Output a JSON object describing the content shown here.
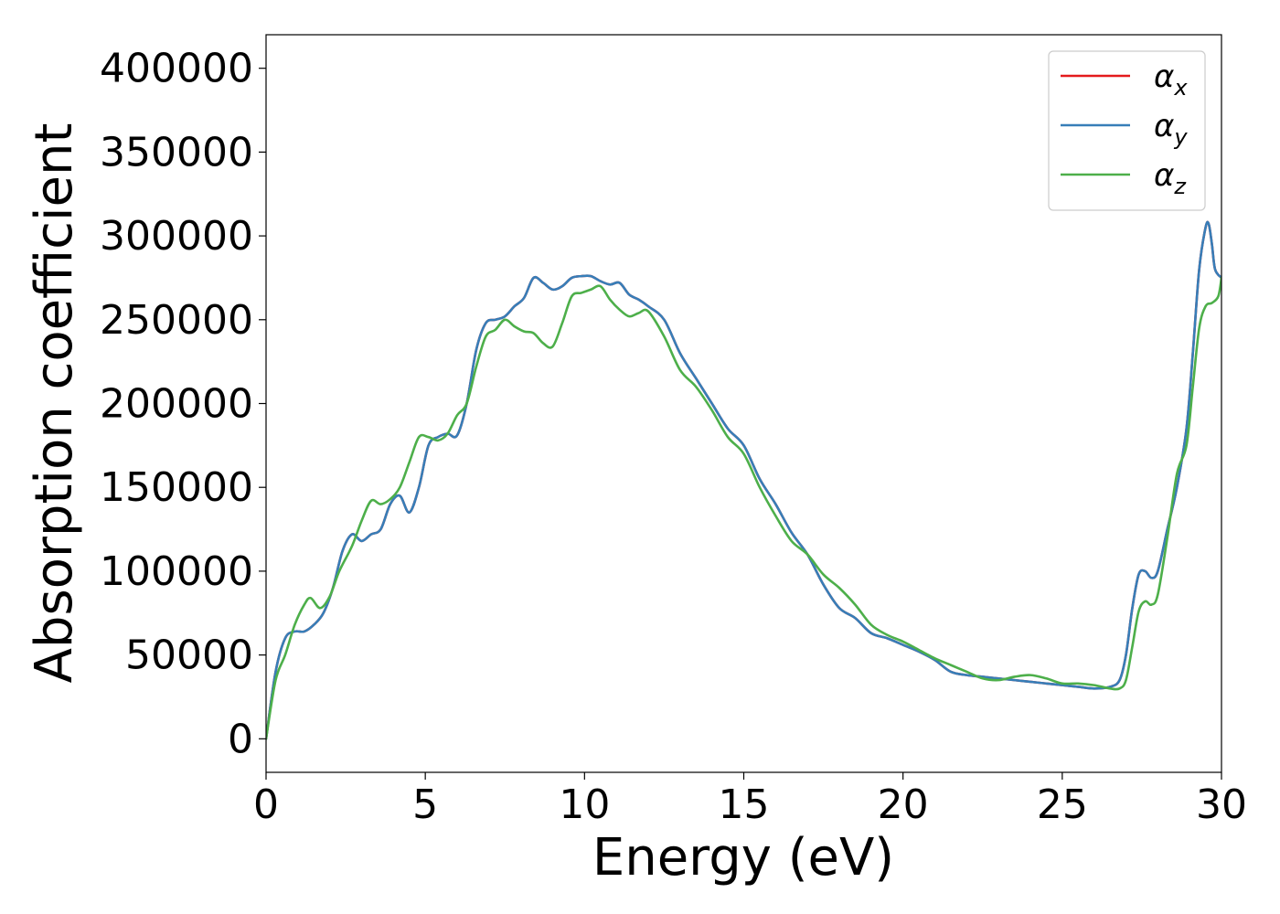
{
  "chart_data": {
    "type": "line",
    "title": "",
    "xlabel": "Energy (eV)",
    "ylabel": "Absorption coefficient",
    "xlim": [
      0,
      30
    ],
    "ylim": [
      -20000,
      420000
    ],
    "xticks": [
      0,
      5,
      10,
      15,
      20,
      25,
      30
    ],
    "yticks": [
      0,
      50000,
      100000,
      150000,
      200000,
      250000,
      300000,
      350000,
      400000
    ],
    "grid": false,
    "legend_position": "top-right",
    "series": [
      {
        "name": "α_x",
        "base": "α",
        "sub": "x",
        "color": "#e41a1c",
        "x": [
          0,
          0.3,
          0.6,
          0.9,
          1.2,
          1.5,
          1.8,
          2.1,
          2.4,
          2.7,
          3.0,
          3.3,
          3.6,
          3.9,
          4.2,
          4.5,
          4.8,
          5.1,
          5.4,
          5.7,
          6.0,
          6.3,
          6.6,
          6.9,
          7.2,
          7.5,
          7.8,
          8.1,
          8.4,
          8.7,
          9.0,
          9.3,
          9.6,
          9.9,
          10.2,
          10.5,
          10.8,
          11.1,
          11.4,
          11.7,
          12.0,
          12.5,
          13.0,
          13.5,
          14.0,
          14.5,
          15.0,
          15.5,
          16.0,
          16.5,
          17.0,
          17.5,
          18.0,
          18.5,
          19.0,
          19.5,
          20.0,
          20.5,
          21.0,
          21.5,
          22.0,
          22.5,
          23.0,
          23.5,
          24.0,
          24.5,
          25.0,
          25.5,
          26.0,
          26.5,
          26.8,
          27.0,
          27.2,
          27.4,
          27.6,
          27.8,
          28.0,
          28.3,
          28.6,
          28.9,
          29.1,
          29.3,
          29.5,
          29.6,
          29.7,
          29.8,
          30.0
        ],
        "values": [
          0,
          40000,
          60000,
          64000,
          64000,
          68000,
          75000,
          90000,
          112000,
          122000,
          118000,
          122000,
          125000,
          140000,
          145000,
          135000,
          150000,
          175000,
          180000,
          182000,
          181000,
          200000,
          232000,
          248000,
          250000,
          252000,
          258000,
          263000,
          275000,
          272000,
          268000,
          270000,
          275000,
          276000,
          276000,
          273000,
          271000,
          272000,
          265000,
          262000,
          258000,
          250000,
          230000,
          215000,
          200000,
          185000,
          175000,
          155000,
          140000,
          123000,
          110000,
          92000,
          78000,
          72000,
          63000,
          60000,
          56000,
          52000,
          47000,
          40000,
          38000,
          37000,
          36000,
          35000,
          34000,
          33000,
          32000,
          31000,
          30000,
          31000,
          35000,
          50000,
          78000,
          98000,
          100000,
          96000,
          100000,
          125000,
          150000,
          185000,
          230000,
          280000,
          305000,
          307000,
          295000,
          280000,
          275000
        ]
      },
      {
        "name": "α_y",
        "base": "α",
        "sub": "y",
        "color": "#377eb8",
        "x": [
          0,
          0.3,
          0.6,
          0.9,
          1.2,
          1.5,
          1.8,
          2.1,
          2.4,
          2.7,
          3.0,
          3.3,
          3.6,
          3.9,
          4.2,
          4.5,
          4.8,
          5.1,
          5.4,
          5.7,
          6.0,
          6.3,
          6.6,
          6.9,
          7.2,
          7.5,
          7.8,
          8.1,
          8.4,
          8.7,
          9.0,
          9.3,
          9.6,
          9.9,
          10.2,
          10.5,
          10.8,
          11.1,
          11.4,
          11.7,
          12.0,
          12.5,
          13.0,
          13.5,
          14.0,
          14.5,
          15.0,
          15.5,
          16.0,
          16.5,
          17.0,
          17.5,
          18.0,
          18.5,
          19.0,
          19.5,
          20.0,
          20.5,
          21.0,
          21.5,
          22.0,
          22.5,
          23.0,
          23.5,
          24.0,
          24.5,
          25.0,
          25.5,
          26.0,
          26.5,
          26.8,
          27.0,
          27.2,
          27.4,
          27.6,
          27.8,
          28.0,
          28.3,
          28.6,
          28.9,
          29.1,
          29.3,
          29.5,
          29.6,
          29.7,
          29.8,
          30.0
        ],
        "values": [
          0,
          40000,
          60000,
          64000,
          64000,
          68000,
          75000,
          90000,
          112000,
          122000,
          118000,
          122000,
          125000,
          140000,
          145000,
          135000,
          150000,
          175000,
          180000,
          182000,
          181000,
          200000,
          232000,
          248000,
          250000,
          252000,
          258000,
          263000,
          275000,
          272000,
          268000,
          270000,
          275000,
          276000,
          276000,
          273000,
          271000,
          272000,
          265000,
          262000,
          258000,
          250000,
          230000,
          215000,
          200000,
          185000,
          175000,
          155000,
          140000,
          123000,
          110000,
          92000,
          78000,
          72000,
          63000,
          60000,
          56000,
          52000,
          47000,
          40000,
          38000,
          37000,
          36000,
          35000,
          34000,
          33000,
          32000,
          31000,
          30000,
          31000,
          35000,
          50000,
          78000,
          98000,
          100000,
          96000,
          100000,
          125000,
          150000,
          185000,
          230000,
          280000,
          305000,
          307000,
          295000,
          280000,
          275000
        ]
      },
      {
        "name": "α_z",
        "base": "α",
        "sub": "z",
        "color": "#4daf4a",
        "x": [
          0,
          0.3,
          0.6,
          0.9,
          1.2,
          1.4,
          1.7,
          2.0,
          2.3,
          2.7,
          3.0,
          3.3,
          3.6,
          3.9,
          4.2,
          4.5,
          4.8,
          5.1,
          5.4,
          5.7,
          6.0,
          6.3,
          6.6,
          6.9,
          7.2,
          7.5,
          7.8,
          8.1,
          8.4,
          8.7,
          9.0,
          9.3,
          9.6,
          9.9,
          10.2,
          10.5,
          10.8,
          11.1,
          11.4,
          11.7,
          12.0,
          12.5,
          13.0,
          13.5,
          14.0,
          14.5,
          15.0,
          15.5,
          16.0,
          16.5,
          17.0,
          17.5,
          18.0,
          18.5,
          19.0,
          19.5,
          20.0,
          20.5,
          21.0,
          21.5,
          22.0,
          22.5,
          23.0,
          23.5,
          24.0,
          24.5,
          25.0,
          25.5,
          26.0,
          26.5,
          26.8,
          27.0,
          27.2,
          27.4,
          27.6,
          27.8,
          28.0,
          28.3,
          28.6,
          28.9,
          29.1,
          29.3,
          29.5,
          29.7,
          29.9,
          30.0
        ],
        "values": [
          0,
          35000,
          50000,
          68000,
          80000,
          84000,
          78000,
          85000,
          100000,
          115000,
          130000,
          142000,
          140000,
          143000,
          150000,
          165000,
          180000,
          180000,
          178000,
          182000,
          193000,
          200000,
          222000,
          240000,
          244000,
          250000,
          246000,
          243000,
          242000,
          236000,
          234000,
          248000,
          264000,
          266000,
          268000,
          270000,
          262000,
          256000,
          252000,
          254000,
          255000,
          240000,
          220000,
          210000,
          196000,
          180000,
          170000,
          150000,
          133000,
          118000,
          110000,
          98000,
          90000,
          80000,
          68000,
          62000,
          58000,
          53000,
          48000,
          44000,
          40000,
          36000,
          35000,
          37000,
          38000,
          36000,
          33000,
          33000,
          32000,
          30000,
          30000,
          35000,
          55000,
          76000,
          82000,
          80000,
          86000,
          120000,
          158000,
          175000,
          210000,
          245000,
          258000,
          260000,
          264000,
          275000
        ]
      }
    ]
  }
}
